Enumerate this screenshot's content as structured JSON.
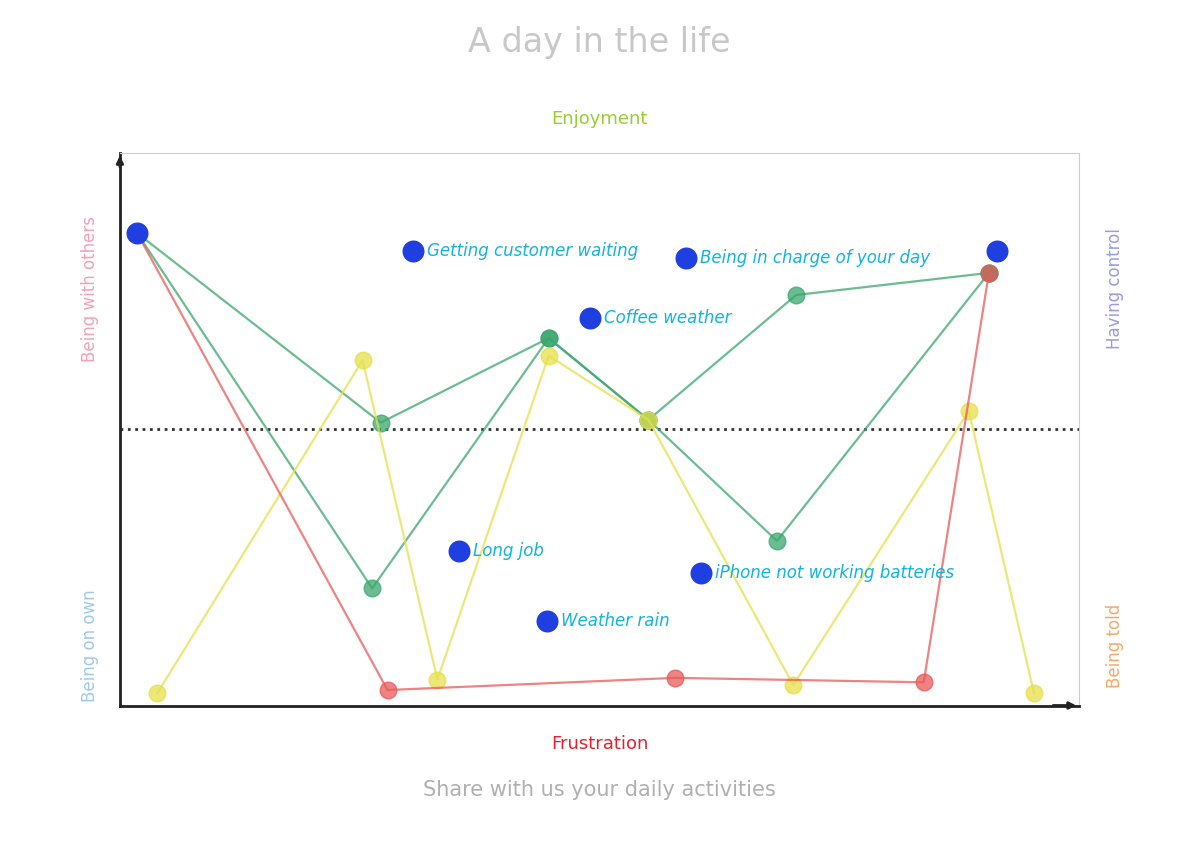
{
  "chart_data": {
    "type": "line",
    "title": "A day in the life",
    "xlabel": "Share with us your daily activities",
    "axis_labels": {
      "top": "Enjoyment",
      "bottom": "Frustration",
      "left_top": "Being with others",
      "left_bottom": "Being on own",
      "right_top": "Having control",
      "right_bottom": "Being told"
    },
    "xlim": [
      0,
      100
    ],
    "ylim": [
      0,
      100
    ],
    "xticks": [],
    "yticks": [],
    "tick_labels": false,
    "grid": false,
    "series": [
      {
        "type": "line",
        "color": "#3aa76d",
        "marker": "o",
        "line_style": "solid",
        "x": [
          1.8,
          27.2,
          44.7,
          55.1,
          70.5,
          90.6
        ],
        "values": [
          85.5,
          51.2,
          66.5,
          51.7,
          74.3,
          78.3
        ]
      },
      {
        "type": "line",
        "color": "#3aa76d",
        "marker": "o",
        "line_style": "solid",
        "x": [
          1.8,
          26.3,
          44.7,
          55.1,
          68.5,
          90.6
        ],
        "values": [
          85.5,
          21.2,
          66.5,
          51.7,
          29.8,
          78.3
        ]
      },
      {
        "type": "line",
        "color": "#e6e04a",
        "marker": "o",
        "line_style": "solid",
        "x": [
          3.9,
          25.3,
          33.1,
          44.7,
          55.1,
          70.2,
          88.5,
          95.3
        ],
        "values": [
          2.2,
          62.5,
          4.7,
          63.3,
          51.7,
          3.7,
          53.3,
          2.2
        ]
      },
      {
        "type": "line",
        "color": "#e85a5a",
        "marker": "o",
        "line_style": "solid",
        "x": [
          1.8,
          27.9,
          57.9,
          83.8,
          90.6
        ],
        "values": [
          85.5,
          2.8,
          5.0,
          4.2,
          78.3
        ]
      },
      {
        "type": "scatter",
        "color": "#1f3fe0",
        "marker": "o",
        "x": [
          1.8,
          30.6,
          49.0,
          59.0,
          91.4,
          35.4,
          44.5,
          60.6
        ],
        "values": [
          85.5,
          82.2,
          70.2,
          81.0,
          82.2,
          28.0,
          15.3,
          24.0
        ],
        "point_labels": [
          null,
          "Getting customer waiting",
          "Coffee weather",
          "Being in charge of your day",
          null,
          "Long job",
          "Weather rain",
          "iPhone not working batteries"
        ]
      }
    ]
  }
}
